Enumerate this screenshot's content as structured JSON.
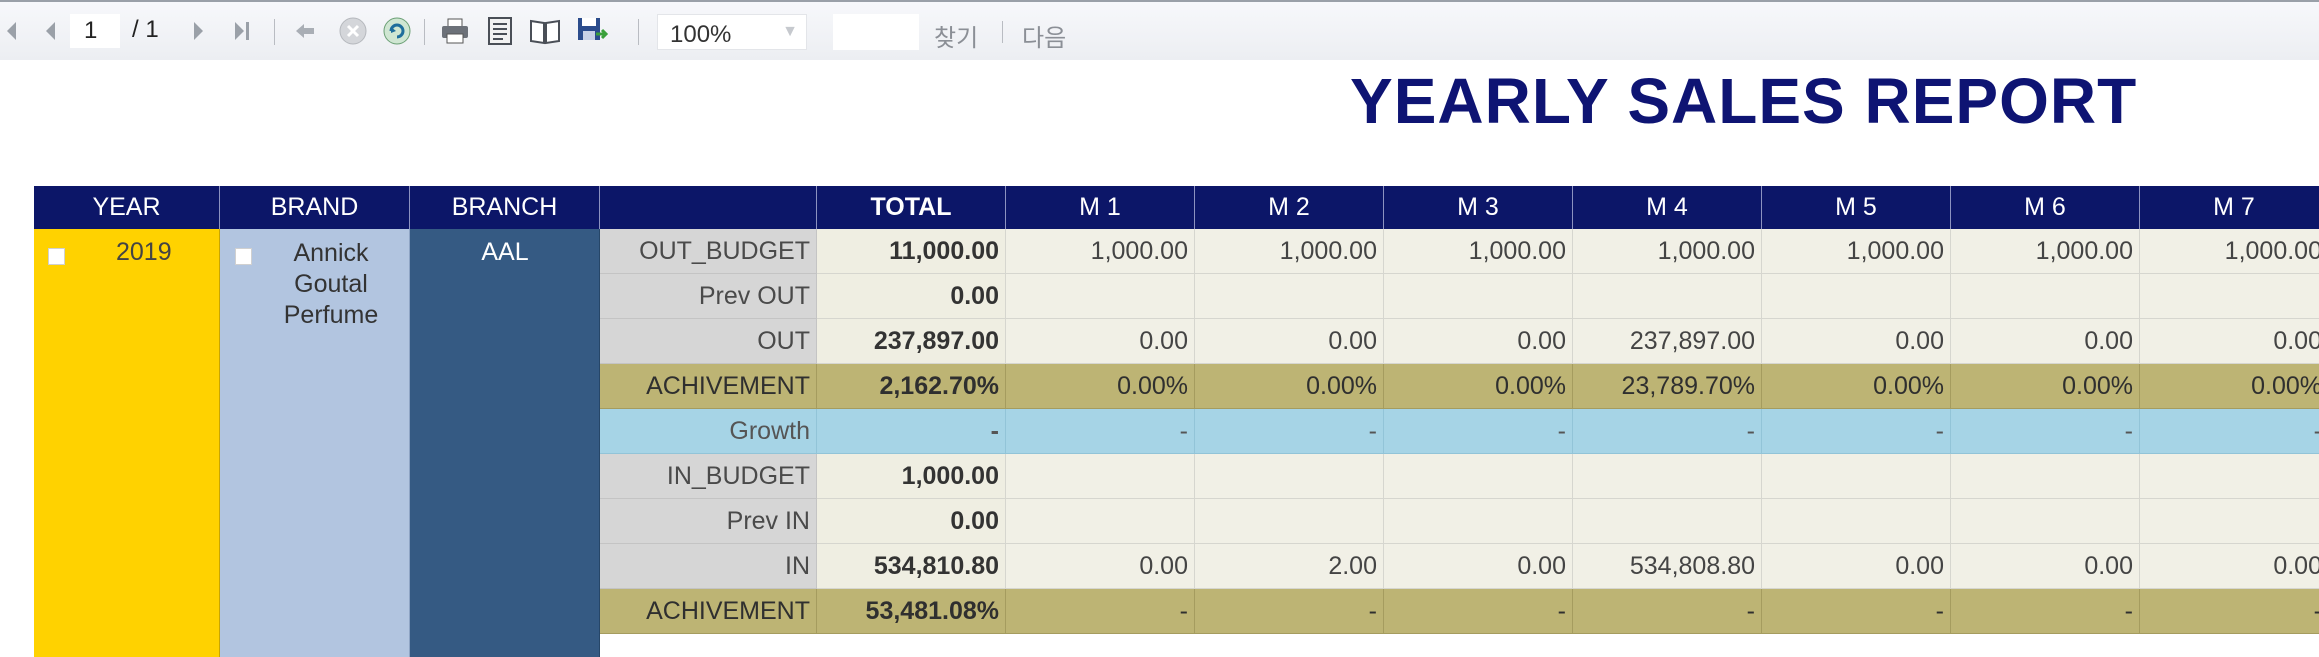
{
  "toolbar": {
    "current_page": "1",
    "page_total": "/ 1",
    "zoom": "100%",
    "find_label": "찾기",
    "next_label": "다음",
    "icons": [
      "first-page-icon",
      "prev-page-icon",
      "next-page-icon",
      "last-page-icon",
      "back-icon",
      "stop-icon",
      "refresh-icon",
      "print-icon",
      "print-layout-icon",
      "page-setup-icon",
      "export-icon"
    ]
  },
  "report": {
    "title": "YEARLY SALES REPORT",
    "columns": [
      "YEAR",
      "BRAND",
      "BRANCH",
      "",
      "TOTAL",
      "M 1",
      "M 2",
      "M 3",
      "M 4",
      "M 5",
      "M 6",
      "M 7"
    ],
    "year": "2019",
    "brand": "Annick Goutal Perfume",
    "branch": "AAL",
    "rows": [
      {
        "label": "OUT_BUDGET",
        "total": "11,000.00",
        "months": [
          "1,000.00",
          "1,000.00",
          "1,000.00",
          "1,000.00",
          "1,000.00",
          "1,000.00",
          "1,000.00"
        ]
      },
      {
        "label": "Prev OUT",
        "total": "0.00",
        "months": [
          "",
          "",
          "",
          "",
          "",
          "",
          ""
        ]
      },
      {
        "label": "OUT",
        "total": "237,897.00",
        "months": [
          "0.00",
          "0.00",
          "0.00",
          "237,897.00",
          "0.00",
          "0.00",
          "0.00"
        ]
      },
      {
        "label": "ACHIVEMENT",
        "total": "2,162.70%",
        "months": [
          "0.00%",
          "0.00%",
          "0.00%",
          "23,789.70%",
          "0.00%",
          "0.00%",
          "0.00%"
        ]
      },
      {
        "label": "Growth",
        "total": "-",
        "months": [
          "-",
          "-",
          "-",
          "-",
          "-",
          "-",
          "-"
        ]
      },
      {
        "label": "IN_BUDGET",
        "total": "1,000.00",
        "months": [
          "",
          "",
          "",
          "",
          "",
          "",
          ""
        ]
      },
      {
        "label": "Prev IN",
        "total": "0.00",
        "months": [
          "",
          "",
          "",
          "",
          "",
          "",
          ""
        ]
      },
      {
        "label": "IN",
        "total": "534,810.80",
        "months": [
          "0.00",
          "2.00",
          "0.00",
          "534,808.80",
          "0.00",
          "0.00",
          "0.00"
        ]
      },
      {
        "label": "ACHIVEMENT",
        "total": "53,481.08%",
        "months": [
          "-",
          "-",
          "-",
          "-",
          "-",
          "-",
          "-"
        ]
      }
    ]
  }
}
